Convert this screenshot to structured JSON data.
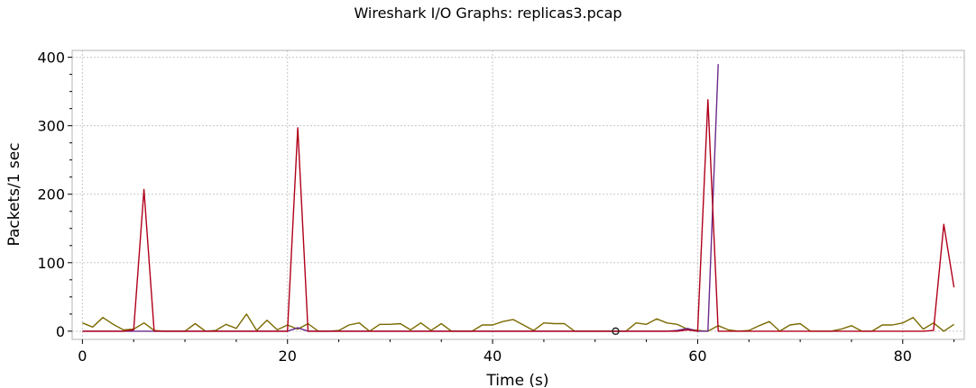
{
  "chart_data": {
    "type": "line",
    "title": "Wireshark I/O Graphs: replicas3.pcap",
    "xlabel": "Time (s)",
    "ylabel": "Packets/1 sec",
    "xlim": [
      -1,
      86
    ],
    "ylim": [
      -12,
      410
    ],
    "xticks": [
      0,
      20,
      40,
      60,
      80
    ],
    "yticks": [
      0,
      100,
      200,
      300,
      400
    ],
    "grid": true,
    "series": [
      {
        "color": "#7a6a00",
        "x": [
          0,
          1,
          2,
          3,
          4,
          5,
          6,
          7,
          8,
          9,
          10,
          11,
          12,
          13,
          14,
          15,
          16,
          17,
          18,
          19,
          20,
          21,
          22,
          23,
          24,
          25,
          26,
          27,
          28,
          29,
          30,
          31,
          32,
          33,
          34,
          35,
          36,
          37,
          38,
          39,
          40,
          41,
          42,
          43,
          44,
          45,
          46,
          47,
          48,
          49,
          50,
          51,
          52,
          53,
          54,
          55,
          56,
          57,
          58,
          59,
          60,
          61,
          62,
          63,
          64,
          65,
          66,
          67,
          68,
          69,
          70,
          71,
          72,
          73,
          74,
          75,
          76,
          77,
          78,
          79,
          80,
          81,
          82,
          83,
          84,
          85
        ],
        "y": [
          12,
          6,
          20,
          10,
          2,
          3,
          12,
          1,
          0,
          0,
          0,
          11,
          0,
          1,
          10,
          4,
          25,
          1,
          16,
          2,
          9,
          3,
          11,
          0,
          0,
          1,
          9,
          12,
          0,
          10,
          10,
          11,
          2,
          12,
          1,
          11,
          0,
          0,
          0,
          9,
          9,
          14,
          17,
          9,
          1,
          12,
          11,
          11,
          0,
          0,
          0,
          0,
          0,
          0,
          12,
          10,
          18,
          12,
          10,
          3,
          1,
          0,
          8,
          2,
          0,
          1,
          8,
          14,
          0,
          9,
          11,
          0,
          0,
          0,
          3,
          8,
          0,
          0,
          9,
          9,
          12,
          20,
          3,
          12,
          0,
          10
        ]
      },
      {
        "color": "#6a2a8a",
        "x": [
          0,
          1,
          2,
          3,
          4,
          5,
          6,
          7,
          8,
          9,
          10,
          11,
          12,
          13,
          14,
          15,
          16,
          17,
          18,
          19,
          20,
          21,
          22,
          23,
          24,
          25,
          26,
          27,
          28,
          29,
          30,
          31,
          32,
          33,
          34,
          35,
          36,
          37,
          38,
          39,
          40,
          41,
          42,
          43,
          44,
          45,
          46,
          47,
          48,
          49,
          50,
          51,
          52,
          53,
          54,
          55,
          56,
          57,
          58,
          59,
          60,
          61,
          62
        ],
        "y": [
          0,
          0,
          0,
          0,
          0,
          0,
          0,
          0,
          0,
          0,
          0,
          0,
          0,
          0,
          0,
          0,
          0,
          0,
          0,
          0,
          0,
          5,
          0,
          0,
          0,
          0,
          0,
          0,
          0,
          0,
          0,
          0,
          0,
          0,
          0,
          0,
          0,
          0,
          0,
          0,
          0,
          0,
          0,
          0,
          0,
          0,
          0,
          0,
          0,
          0,
          0,
          0,
          0,
          0,
          0,
          0,
          0,
          0,
          1,
          4,
          0,
          0,
          390
        ]
      },
      {
        "color": "#b0001a",
        "x": [
          0,
          1,
          2,
          3,
          4,
          5,
          6,
          7,
          8,
          9,
          10,
          11,
          12,
          13,
          14,
          15,
          16,
          17,
          18,
          19,
          20,
          21,
          22,
          23,
          24,
          25,
          26,
          27,
          28,
          29,
          30,
          31,
          32,
          33,
          34,
          35,
          36,
          37,
          38,
          39,
          40,
          41,
          42,
          43,
          44,
          45,
          46,
          47,
          48,
          49,
          50,
          51,
          52,
          53,
          54,
          55,
          56,
          57,
          58,
          59,
          60,
          61,
          62,
          63,
          64,
          65,
          66,
          67,
          68,
          69,
          70,
          71,
          72,
          73,
          74,
          75,
          76,
          77,
          78,
          79,
          80,
          81,
          82,
          83,
          84,
          85
        ],
        "y": [
          0,
          0,
          0,
          0,
          0,
          2,
          207,
          0,
          0,
          0,
          0,
          0,
          0,
          0,
          0,
          0,
          0,
          0,
          0,
          0,
          0,
          297,
          0,
          0,
          0,
          0,
          0,
          0,
          0,
          0,
          0,
          0,
          0,
          0,
          0,
          0,
          0,
          0,
          0,
          0,
          0,
          0,
          0,
          0,
          0,
          0,
          0,
          0,
          0,
          0,
          0,
          0,
          0,
          0,
          0,
          0,
          0,
          0,
          0,
          2,
          0,
          338,
          0,
          0,
          0,
          0,
          0,
          0,
          0,
          0,
          0,
          0,
          0,
          0,
          0,
          0,
          0,
          0,
          0,
          0,
          0,
          0,
          0,
          1,
          156,
          64
        ]
      }
    ],
    "annotations": [
      {
        "type": "marker",
        "shape": "circle",
        "x": 52,
        "y": 0
      }
    ]
  }
}
